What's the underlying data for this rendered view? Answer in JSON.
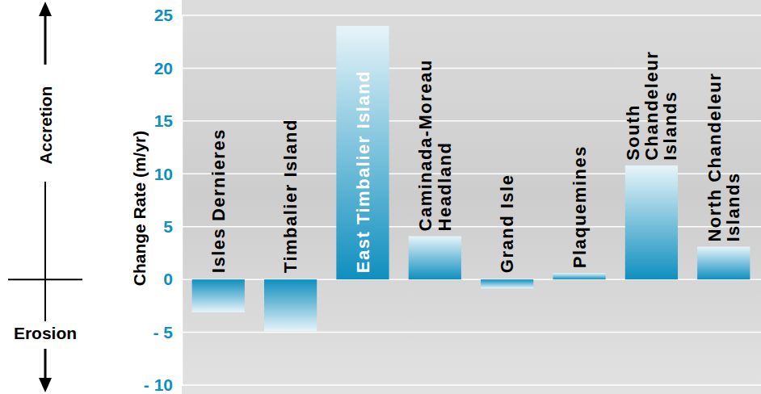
{
  "chart_data": {
    "type": "bar",
    "y_label": "Change Rate (m/yr)",
    "annotations": [
      "Accretion",
      "Erosion"
    ],
    "categories": [
      "Isles Dernieres",
      "Timbalier Island",
      "East Timbalier Island",
      "Caminada-Moreau\nHeadland",
      "Grand Isle",
      "Plaquemines",
      "South\nChandeleur\nIslands",
      "North Chandeleur\nIslands"
    ],
    "values": [
      -3.1,
      -4.9,
      24.0,
      4.1,
      -0.85,
      0.6,
      10.8,
      3.1
    ],
    "color": "#0f8fbf",
    "ylim": [
      -10,
      25
    ],
    "yticks": [
      25,
      20,
      15,
      10,
      5,
      0,
      {
        "value": -5,
        "label": "- 5"
      },
      {
        "value": -10,
        "label": "- 10"
      }
    ],
    "grid": true
  }
}
